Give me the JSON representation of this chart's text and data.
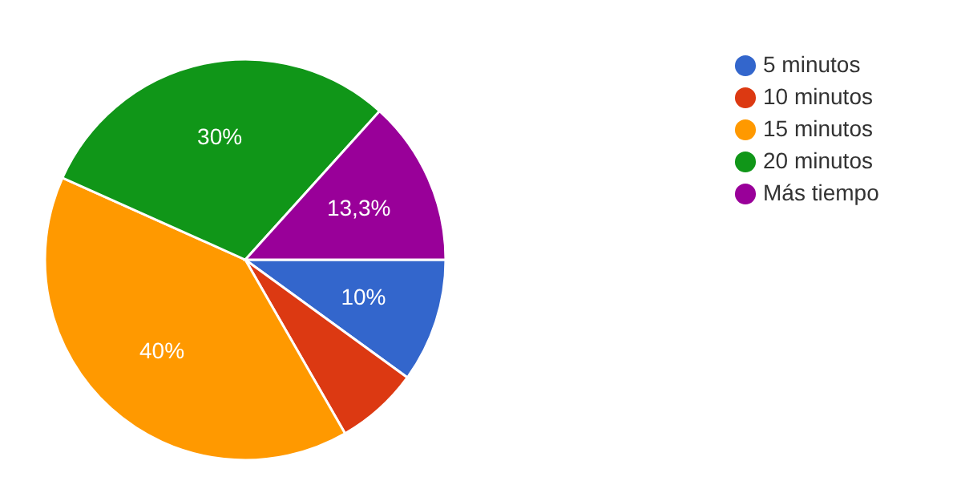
{
  "chart_data": {
    "type": "pie",
    "categories": [
      "5 minutos",
      "10 minutos",
      "15 minutos",
      "20 minutos",
      "Más tiempo"
    ],
    "values": [
      10,
      6.7,
      40,
      30,
      13.3
    ],
    "value_labels": [
      "10%",
      null,
      "40%",
      "30%",
      "13,3%"
    ],
    "colors": [
      "#3366cc",
      "#dc3912",
      "#ff9900",
      "#109618",
      "#990099"
    ],
    "legend": "top right"
  }
}
